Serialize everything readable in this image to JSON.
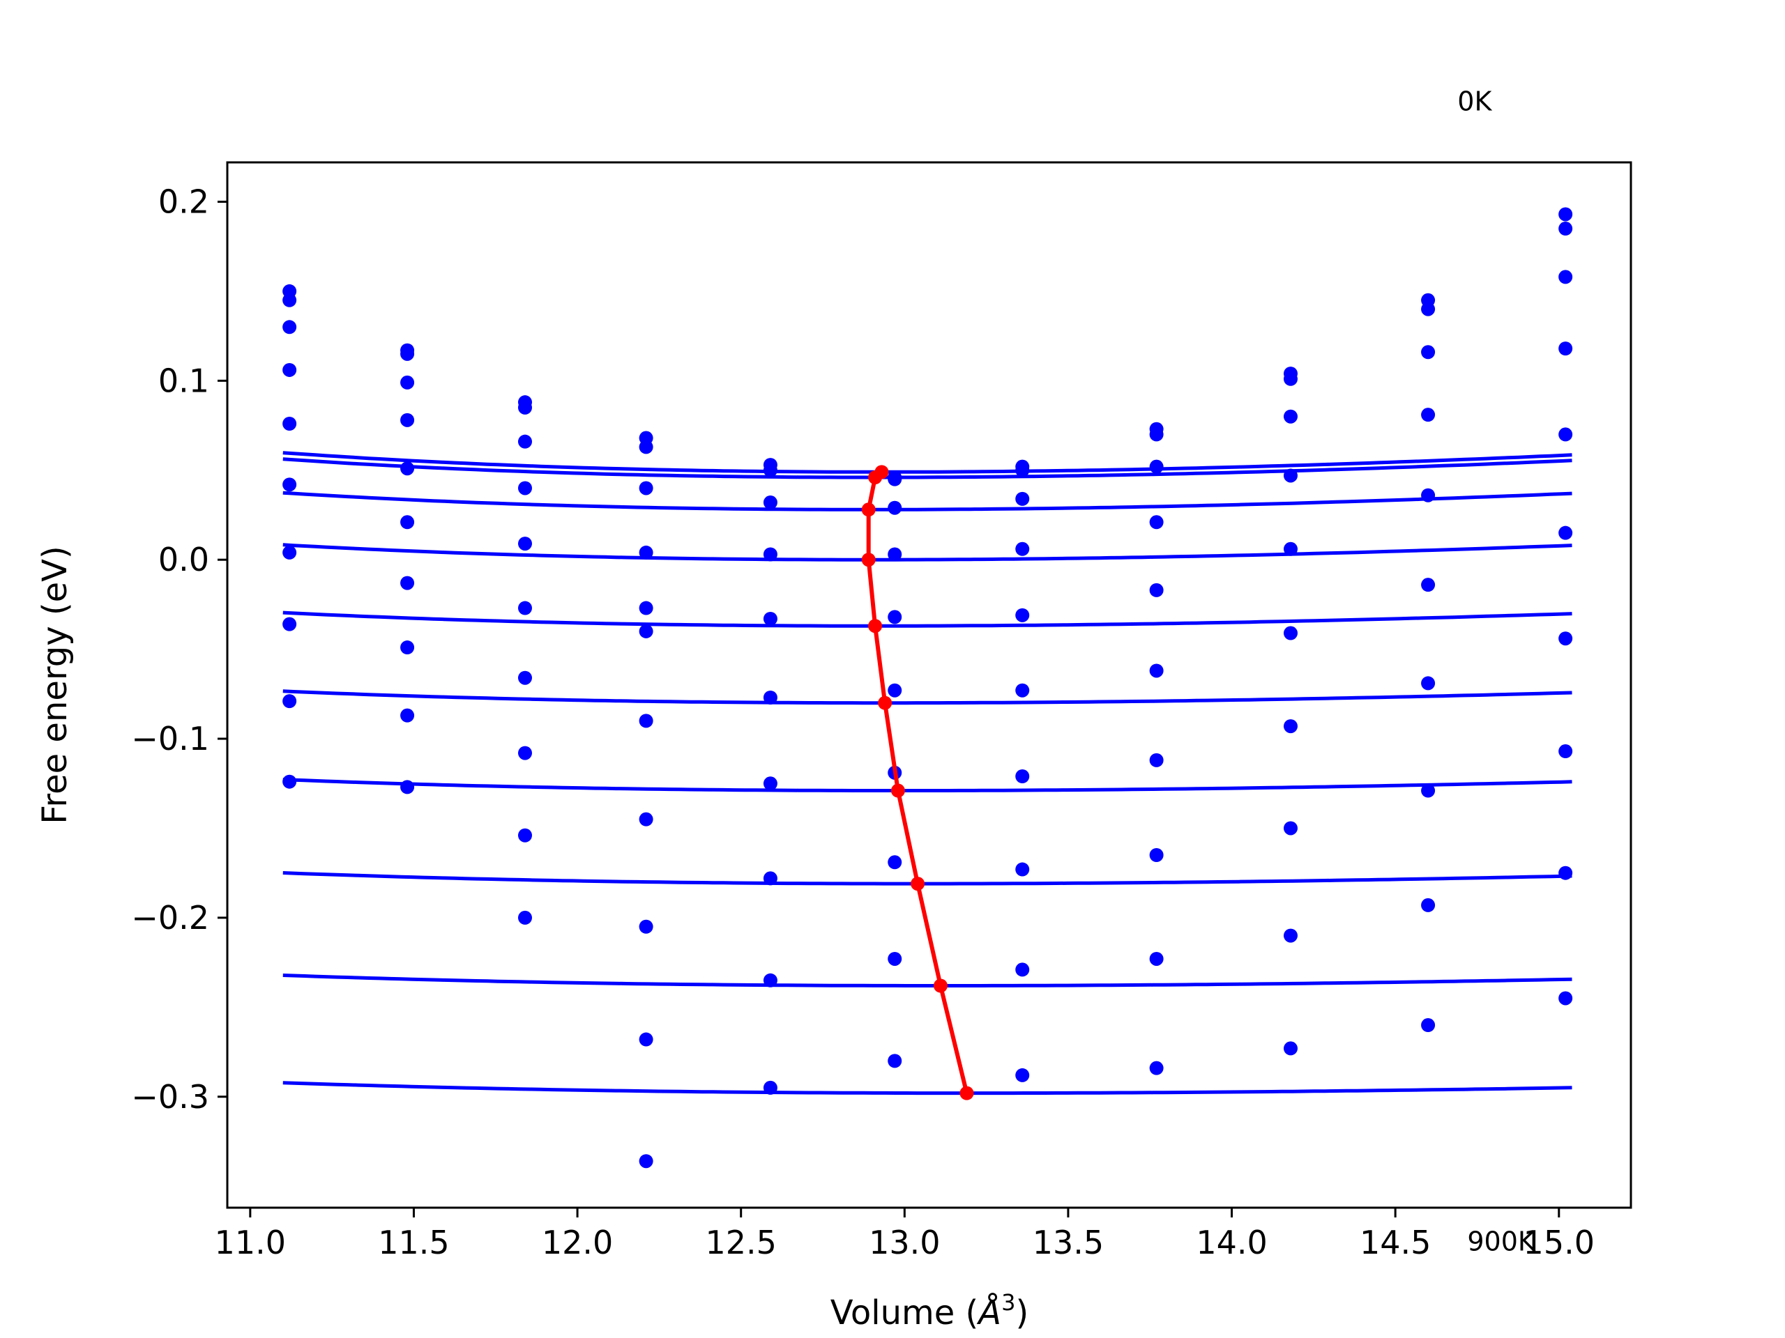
{
  "chart_data": {
    "type": "scatter",
    "xlabel": "Volume (",
    "xlabel_symbol": "Å",
    "xlabel_exponent": "3",
    "xlabel_close": ")",
    "ylabel": "Free energy (eV)",
    "xlim": [
      10.93,
      15.22
    ],
    "ylim": [
      -0.362,
      0.222
    ],
    "xticks": [
      11.0,
      11.5,
      12.0,
      12.5,
      13.0,
      13.5,
      14.0,
      14.5,
      15.0
    ],
    "xtick_labels": [
      "11.0",
      "11.5",
      "12.0",
      "12.5",
      "13.0",
      "13.5",
      "14.0",
      "14.5",
      "15.0"
    ],
    "yticks": [
      0.2,
      0.1,
      0.0,
      -0.1,
      -0.2,
      -0.3
    ],
    "ytick_labels": [
      "0.2",
      "0.1",
      "0.0",
      "−0.1",
      "−0.2",
      "−0.3"
    ],
    "grid": false,
    "annotations": [
      {
        "text": "0K",
        "x": 14.69,
        "y": 0.251
      },
      {
        "text": "900K",
        "x": 14.72,
        "y": -0.386
      }
    ],
    "fit_color": "#0000ff",
    "minima_color": "#ff0000",
    "volumes": [
      11.12,
      11.48,
      11.84,
      12.21,
      12.59,
      12.97,
      13.36,
      13.77,
      14.18,
      14.6,
      15.02
    ],
    "series": [
      {
        "values": [
          0.15,
          0.117,
          0.088,
          0.068,
          0.053,
          0.046,
          0.052,
          0.073,
          0.104,
          0.145,
          0.193
        ],
        "fit_min": [
          12.93,
          0.049
        ],
        "fit_a": 0.068
      },
      {
        "values": [
          0.145,
          0.115,
          0.085,
          0.063,
          0.05,
          0.045,
          0.05,
          0.07,
          0.101,
          0.14,
          0.185
        ],
        "fit_min": [
          12.91,
          0.046
        ],
        "fit_a": 0.066
      },
      {
        "values": [
          0.13,
          0.099,
          0.066,
          0.04,
          0.032,
          0.029,
          0.034,
          0.052,
          0.08,
          0.116,
          0.158
        ],
        "fit_min": [
          12.89,
          0.028
        ],
        "fit_a": 0.062
      },
      {
        "values": [
          0.106,
          0.078,
          0.04,
          0.004,
          0.003,
          0.003,
          0.006,
          0.021,
          0.047,
          0.081,
          0.118
        ],
        "fit_min": [
          12.89,
          0.0
        ],
        "fit_a": 0.055
      },
      {
        "values": [
          0.076,
          0.051,
          0.009,
          -0.027,
          -0.033,
          -0.032,
          -0.031,
          -0.017,
          0.006,
          0.036,
          0.07
        ],
        "fit_min": [
          12.91,
          -0.037
        ],
        "fit_a": 0.048
      },
      {
        "values": [
          0.042,
          0.021,
          -0.027,
          -0.04,
          -0.077,
          -0.073,
          -0.073,
          -0.062,
          -0.041,
          -0.014,
          0.015
        ],
        "fit_min": [
          12.94,
          -0.08
        ],
        "fit_a": 0.041
      },
      {
        "values": [
          0.004,
          -0.013,
          -0.066,
          -0.09,
          -0.125,
          -0.119,
          -0.121,
          -0.112,
          -0.093,
          -0.069,
          -0.044
        ],
        "fit_min": [
          12.98,
          -0.129
        ],
        "fit_a": 0.037
      },
      {
        "values": [
          -0.036,
          -0.049,
          -0.108,
          -0.145,
          -0.178,
          -0.169,
          -0.173,
          -0.165,
          -0.15,
          -0.129,
          -0.107
        ],
        "fit_min": [
          13.04,
          -0.181
        ],
        "fit_a": 0.034
      },
      {
        "values": [
          -0.079,
          -0.087,
          -0.154,
          -0.205,
          -0.235,
          -0.223,
          -0.229,
          -0.223,
          -0.21,
          -0.193,
          -0.175
        ],
        "fit_min": [
          13.11,
          -0.238
        ],
        "fit_a": 0.0305
      },
      {
        "values": [
          -0.124,
          -0.127,
          -0.2,
          -0.268,
          -0.295,
          -0.28,
          -0.288,
          -0.284,
          -0.273,
          -0.26,
          -0.245
        ],
        "fit_min": [
          13.19,
          -0.298
        ],
        "fit_a": 0.028
      }
    ],
    "extra_points": [
      {
        "x": 12.21,
        "y": -0.336
      }
    ],
    "minima_line": [
      {
        "x": 12.93,
        "y": 0.049
      },
      {
        "x": 12.91,
        "y": 0.046
      },
      {
        "x": 12.89,
        "y": 0.028
      },
      {
        "x": 12.89,
        "y": 0.0
      },
      {
        "x": 12.91,
        "y": -0.037
      },
      {
        "x": 12.94,
        "y": -0.08
      },
      {
        "x": 12.98,
        "y": -0.129
      },
      {
        "x": 13.04,
        "y": -0.181
      },
      {
        "x": 13.11,
        "y": -0.238
      },
      {
        "x": 13.19,
        "y": -0.298
      }
    ]
  }
}
